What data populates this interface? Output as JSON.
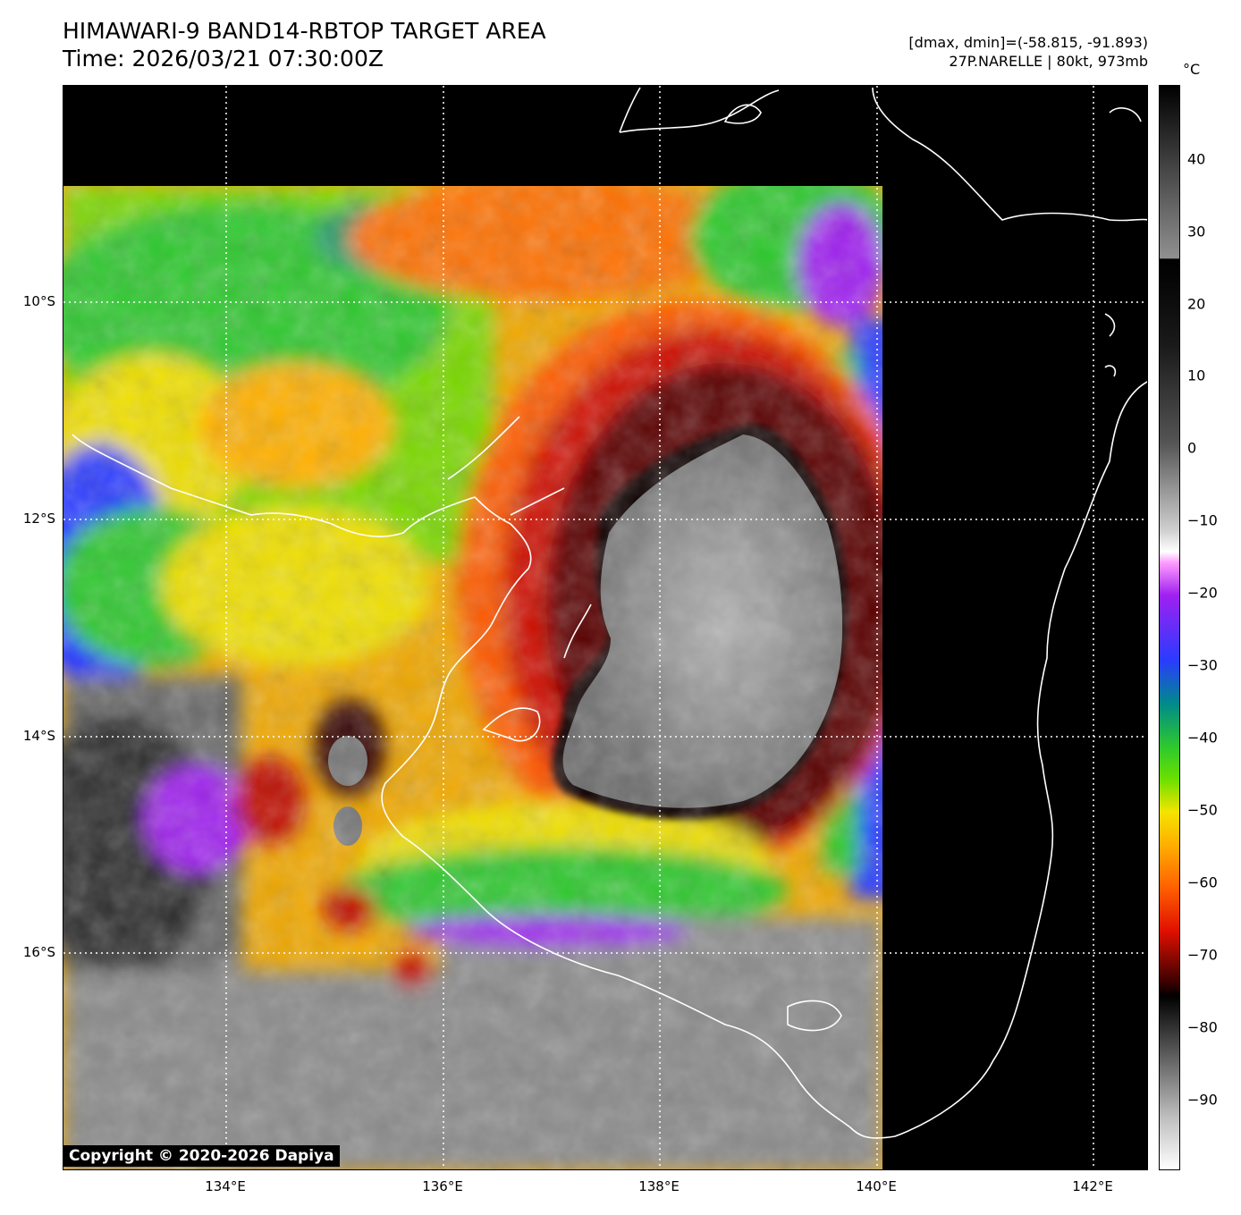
{
  "title": "HIMAWARI-9 BAND14-RBTOP TARGET AREA",
  "time": "Time: 2026/03/21 07:30:00Z",
  "info_range": "[dmax, dmin]=(-58.815, -91.893)",
  "info_storm": "27P.NARELLE | 80kt, 973mb",
  "colorbar_unit": "°C",
  "copyright": "Copyright © 2020-2026 Dapiya",
  "x_ticks": [
    "134°E",
    "136°E",
    "138°E",
    "140°E",
    "142°E"
  ],
  "y_ticks": [
    "10°S",
    "12°S",
    "14°S",
    "16°S"
  ],
  "colorbar_ticks": [
    "40",
    "30",
    "20",
    "10",
    "0",
    "−10",
    "−20",
    "−30",
    "−40",
    "−50",
    "−60",
    "−70",
    "−80",
    "−90"
  ],
  "colors": {
    "eye_gray": "#8c8c8c",
    "cold_black": "#1a0000",
    "red": "#d01000",
    "orange": "#ff7a00",
    "yellow": "#f4e400",
    "green": "#2ecc2e",
    "blue": "#2a3bff",
    "purple": "#a020f0",
    "cloud_gray": "#6e6e6e"
  }
}
